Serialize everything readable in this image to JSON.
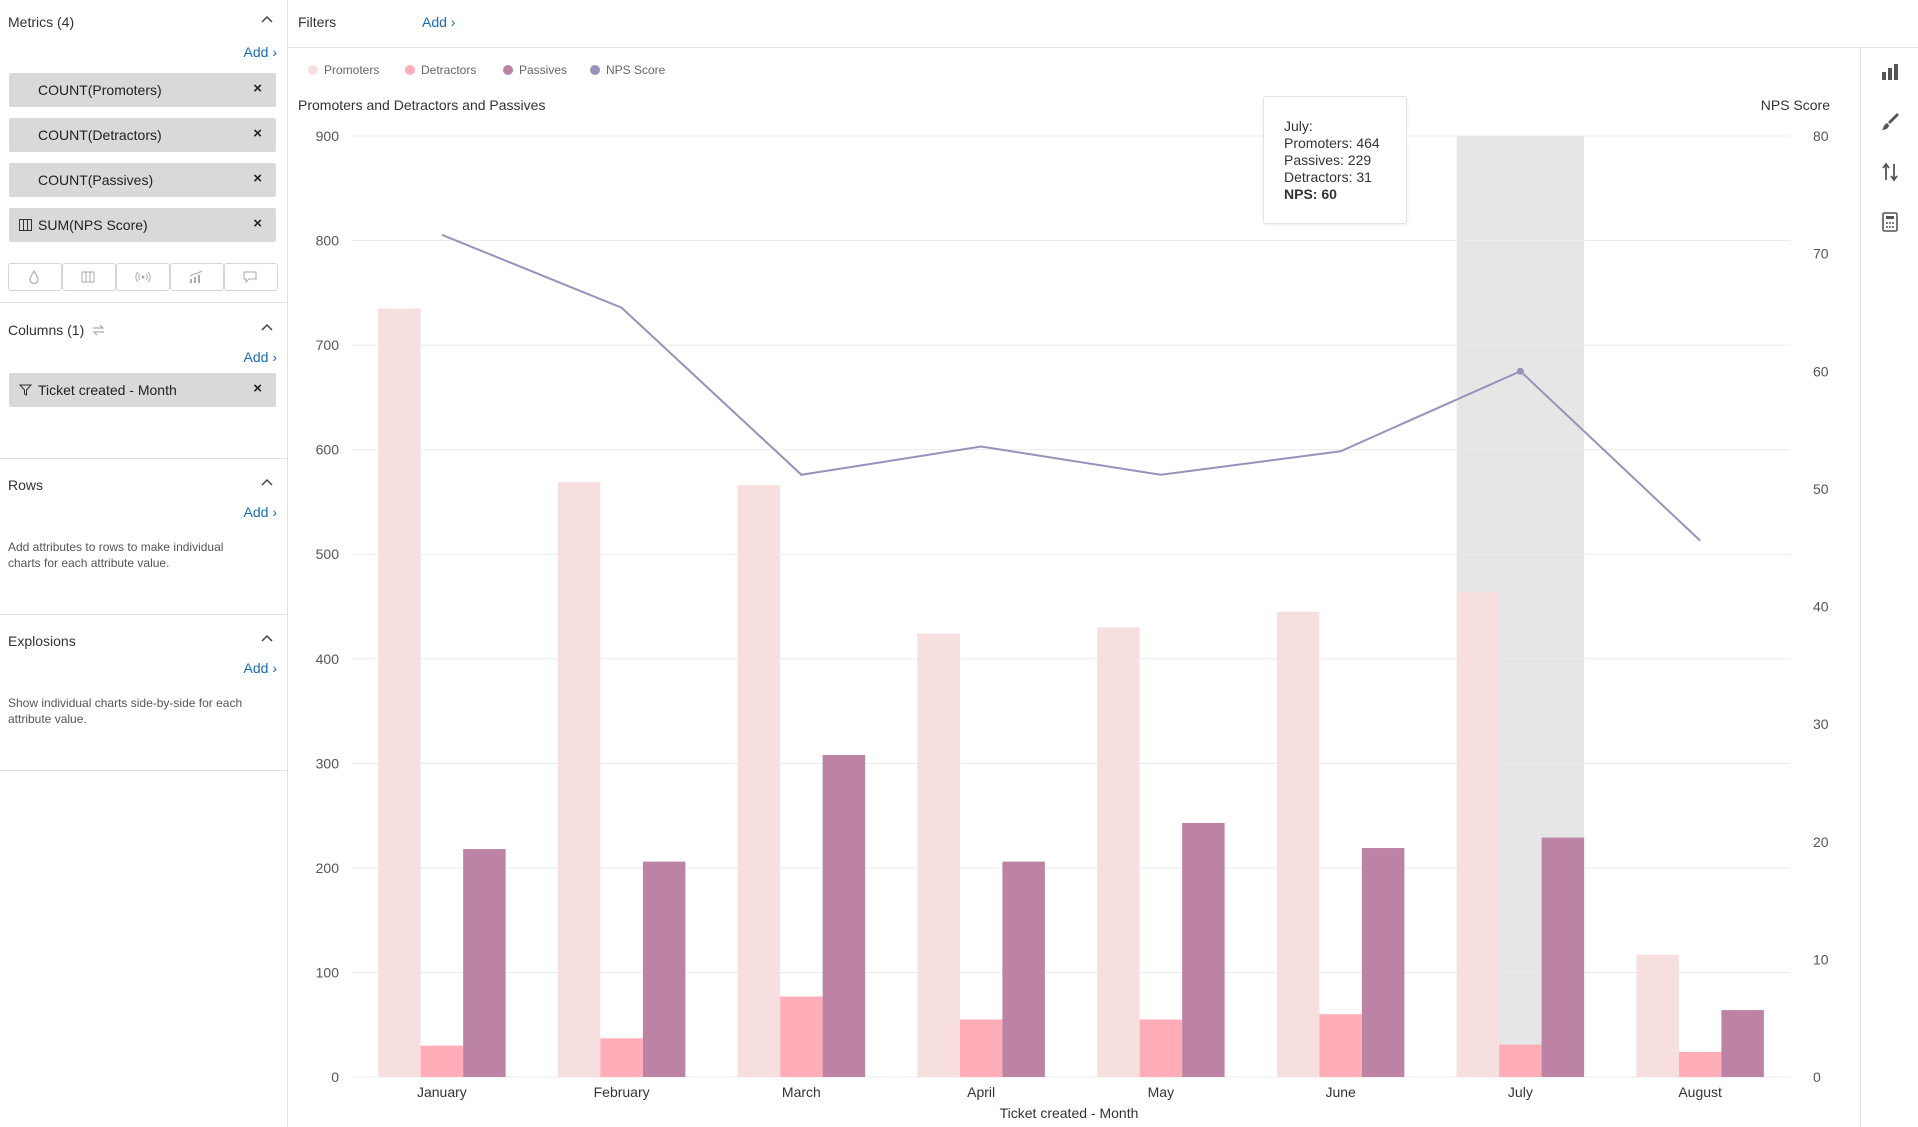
{
  "sidebar": {
    "metrics": {
      "title": "Metrics (4)",
      "add": "Add ›",
      "items": [
        "COUNT(Promoters)",
        "COUNT(Detractors)",
        "COUNT(Passives)",
        "SUM(NPS Score)"
      ]
    },
    "viz_icons": [
      "droplet-icon",
      "columns-icon",
      "broadcast-icon",
      "chart-line-icon",
      "comment-icon"
    ],
    "columns": {
      "title": "Columns (1)",
      "add": "Add ›",
      "items": [
        "Ticket created - Month"
      ]
    },
    "rows": {
      "title": "Rows",
      "add": "Add ›",
      "help": "Add attributes to rows to make individual charts for each attribute value."
    },
    "explosions": {
      "title": "Explosions",
      "add": "Add ›",
      "help": "Show individual charts side-by-side for each attribute value."
    }
  },
  "filters": {
    "label": "Filters",
    "add": "Add ›"
  },
  "toolbar": {
    "icons": [
      "bar-chart-icon",
      "paintbrush-icon",
      "sort-icon",
      "calculator-icon"
    ]
  },
  "colors": {
    "promoters": "#f7dfe0",
    "detractors": "#ffadb8",
    "passives": "#bd83a4",
    "nps": "#9593ba",
    "highlight": "#e6e6e6",
    "accent": "#1a6bb3"
  },
  "tooltip": {
    "title": "July:",
    "promoters": "Promoters: 464",
    "passives": "Passives: 229",
    "detractors": "Detractors: 31",
    "nps": "NPS: 60"
  },
  "chart_data": {
    "type": "bar",
    "title_left": "Promoters and Detractors and Passives",
    "title_right": "NPS Score",
    "xlabel": "Ticket created - Month",
    "categories": [
      "January",
      "February",
      "March",
      "April",
      "May",
      "June",
      "July",
      "August"
    ],
    "highlighted_category": "July",
    "ylim_left": [
      0,
      900
    ],
    "yticks_left": [
      0,
      100,
      200,
      300,
      400,
      500,
      600,
      700,
      800,
      900
    ],
    "ylim_right": [
      0,
      80
    ],
    "yticks_right": [
      0,
      10,
      20,
      30,
      40,
      50,
      60,
      70,
      80
    ],
    "legend": [
      "Promoters",
      "Detractors",
      "Passives",
      "NPS Score"
    ],
    "legend_position": "top-left",
    "grid": true,
    "series": [
      {
        "name": "Promoters",
        "kind": "bar",
        "axis": "left",
        "values": [
          735,
          569,
          566,
          424,
          430,
          445,
          464,
          117
        ]
      },
      {
        "name": "Detractors",
        "kind": "bar",
        "axis": "left",
        "values": [
          30,
          37,
          77,
          55,
          55,
          60,
          31,
          24
        ]
      },
      {
        "name": "Passives",
        "kind": "bar",
        "axis": "left",
        "values": [
          218,
          206,
          308,
          206,
          243,
          219,
          229,
          64
        ]
      },
      {
        "name": "NPS Score",
        "kind": "line",
        "axis": "right",
        "values": [
          71.6,
          65.4,
          51.2,
          53.6,
          51.2,
          53.2,
          60,
          45.6
        ]
      }
    ]
  }
}
